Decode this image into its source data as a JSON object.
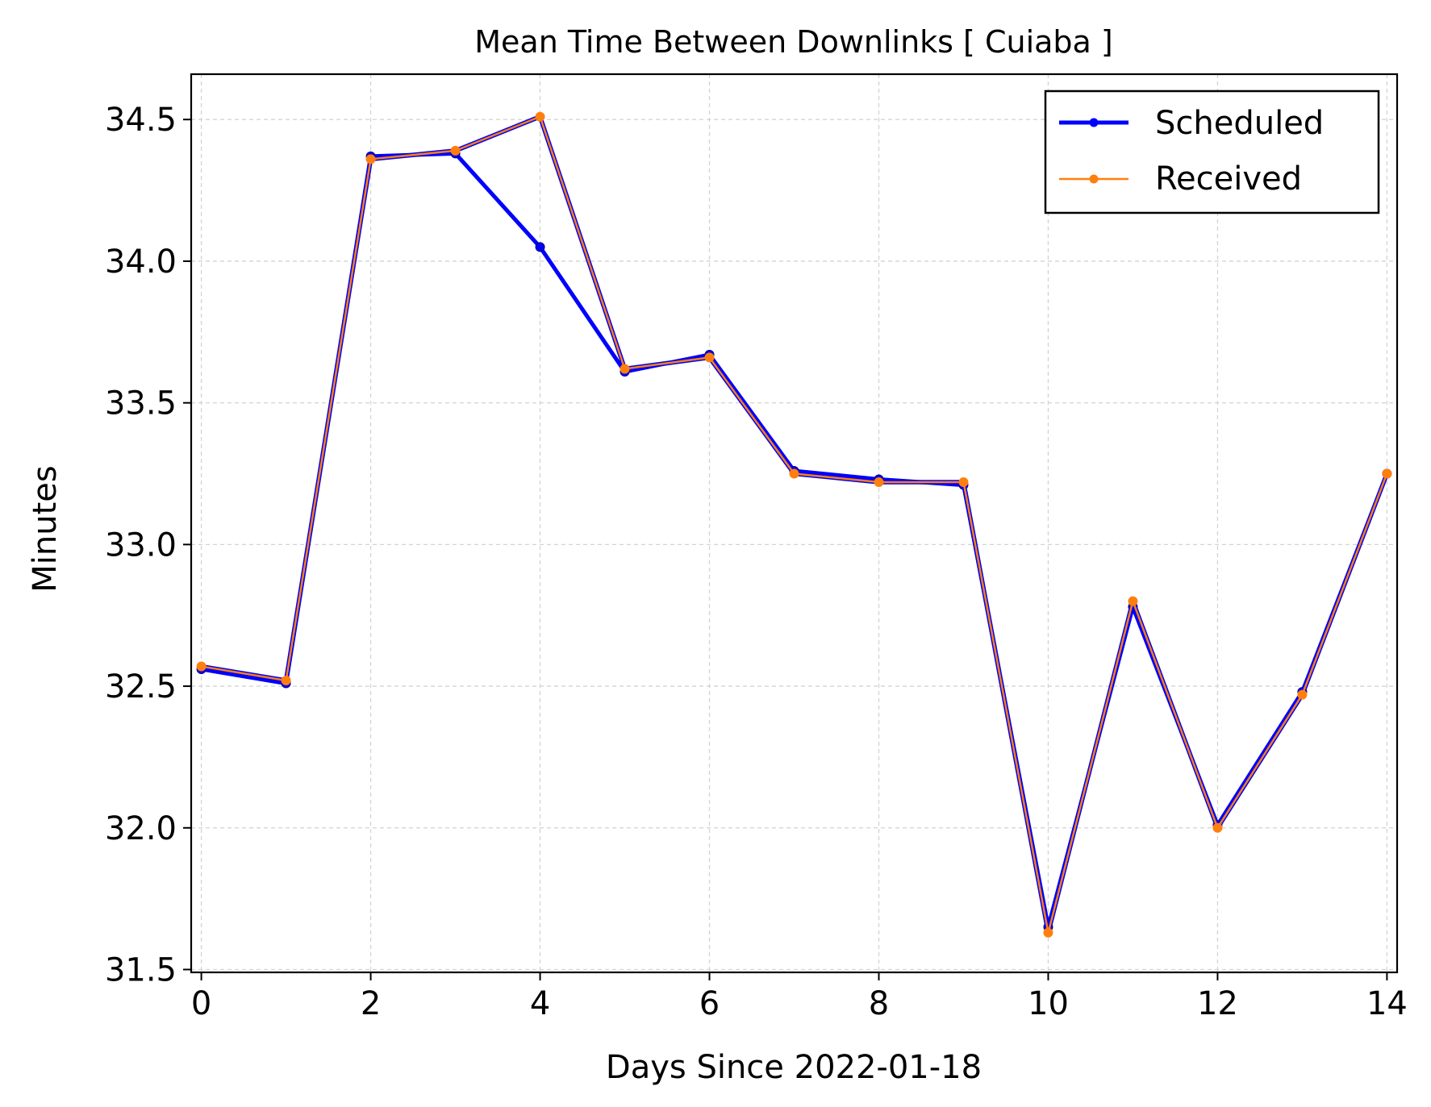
{
  "chart_data": {
    "type": "line",
    "title": "Mean Time Between Downlinks [ Cuiaba ]",
    "xlabel": "Days Since 2022-01-18",
    "ylabel": "Minutes",
    "xlim": [
      -0.12,
      14.12
    ],
    "ylim": [
      31.49,
      34.66
    ],
    "x_ticks": [
      0,
      2,
      4,
      6,
      8,
      10,
      12,
      14
    ],
    "x_tick_labels": [
      "0",
      "2",
      "4",
      "6",
      "8",
      "10",
      "12",
      "14"
    ],
    "y_ticks": [
      31.5,
      32.0,
      32.5,
      33.0,
      33.5,
      34.0,
      34.5
    ],
    "y_tick_labels": [
      "31.5",
      "32.0",
      "32.5",
      "33.0",
      "33.5",
      "34.0",
      "34.5"
    ],
    "grid": true,
    "legend_position": "upper-right",
    "x": [
      0,
      1,
      2,
      3,
      4,
      5,
      6,
      7,
      8,
      9,
      10,
      11,
      12,
      13,
      14
    ],
    "series": [
      {
        "name": "Scheduled",
        "color": "#0000ff",
        "values": [
          32.56,
          32.51,
          34.37,
          34.38,
          34.05,
          33.61,
          33.67,
          33.26,
          33.23,
          33.21,
          31.65,
          32.78,
          32.01,
          32.48,
          33.25
        ]
      },
      {
        "name": "Received",
        "color": "#ff7f0e",
        "values": [
          32.57,
          32.52,
          34.36,
          34.39,
          34.51,
          33.62,
          33.66,
          33.25,
          33.22,
          33.22,
          31.63,
          32.8,
          32.0,
          32.47,
          33.25
        ]
      }
    ]
  }
}
